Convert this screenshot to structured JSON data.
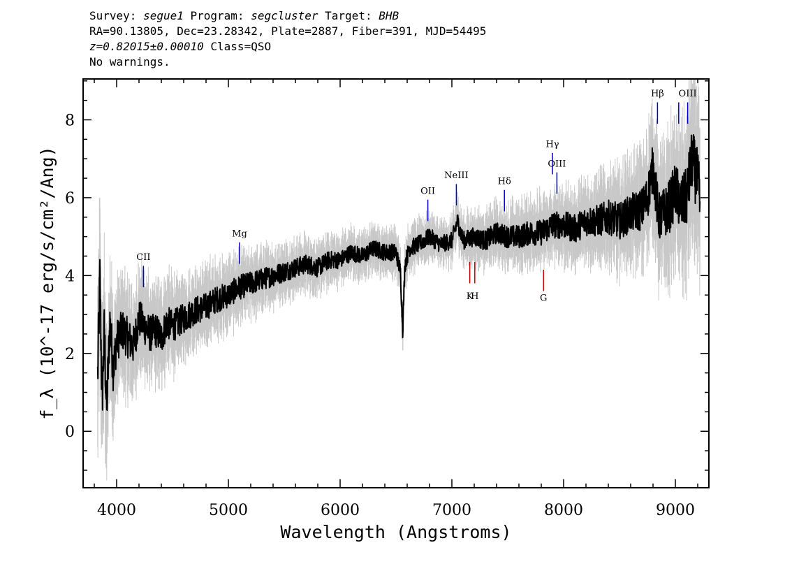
{
  "header": {
    "survey_key": "Survey: ",
    "survey": "segue1",
    "program_key": " Program: ",
    "program": "segcluster",
    "target_key": " Target: ",
    "target": "BHB",
    "line2": "RA=90.13805, Dec=23.28342, Plate=2887, Fiber=391, MJD=54495",
    "redshift": "z=0.82015±0.00010",
    "class_text": " Class=QSO",
    "warnings": "No warnings."
  },
  "chart_data": {
    "type": "line",
    "xlabel": "Wavelength (Angstroms)",
    "ylabel": "f_λ (10^-17 erg/s/cm²/Ang)",
    "xlim": [
      3700,
      9300
    ],
    "ylim": [
      -1.45,
      9.05
    ],
    "x_ticks": [
      4000,
      5000,
      6000,
      7000,
      8000,
      9000
    ],
    "x_tick_labels": [
      "4000",
      "5000",
      "6000",
      "7000",
      "8000",
      "9000"
    ],
    "y_ticks": [
      0,
      2,
      4,
      6,
      8
    ],
    "y_tick_labels": [
      "0",
      "2",
      "4",
      "6",
      "8"
    ],
    "series": [
      {
        "role": "flux",
        "color": "#000000",
        "x": [
          3830,
          3850,
          3870,
          3890,
          3910,
          3940,
          3970,
          4000,
          4050,
          4100,
          4150,
          4200,
          4250,
          4300,
          4350,
          4400,
          4450,
          4500,
          4600,
          4700,
          4800,
          4900,
          5000,
          5100,
          5200,
          5300,
          5400,
          5500,
          5600,
          5700,
          5800,
          5900,
          6000,
          6100,
          6200,
          6300,
          6400,
          6500,
          6540,
          6560,
          6580,
          6620,
          6700,
          6800,
          6900,
          7000,
          7050,
          7100,
          7200,
          7300,
          7400,
          7500,
          7600,
          7700,
          7800,
          7900,
          8000,
          8100,
          8200,
          8300,
          8400,
          8500,
          8600,
          8700,
          8750,
          8800,
          8850,
          8900,
          8950,
          9000,
          9050,
          9100,
          9150,
          9200,
          9220
        ],
        "y": [
          1.4,
          3.9,
          0.8,
          2.6,
          0.5,
          2.8,
          1.6,
          2.3,
          2.6,
          2.4,
          2.2,
          2.9,
          2.7,
          2.5,
          2.6,
          2.4,
          2.8,
          2.7,
          2.9,
          3.1,
          3.2,
          3.4,
          3.5,
          3.7,
          3.8,
          3.9,
          4.0,
          4.1,
          4.2,
          4.3,
          4.2,
          4.4,
          4.4,
          4.6,
          4.5,
          4.7,
          4.6,
          4.6,
          4.1,
          2.6,
          4.3,
          4.7,
          4.8,
          5.0,
          4.8,
          4.9,
          5.4,
          4.9,
          5.0,
          4.9,
          5.1,
          5.0,
          5.0,
          5.1,
          5.1,
          5.3,
          5.3,
          5.2,
          5.4,
          5.4,
          5.5,
          5.4,
          5.6,
          5.7,
          6.0,
          6.8,
          5.5,
          5.6,
          5.8,
          6.2,
          5.8,
          6.0,
          7.0,
          6.4,
          5.9
        ]
      },
      {
        "role": "error",
        "color": "#c8c8c8",
        "x": [
          3830,
          3900,
          4000,
          4200,
          4400,
          4600,
          4800,
          5000,
          5200,
          5400,
          5600,
          5800,
          6000,
          6200,
          6400,
          6600,
          6800,
          7000,
          7200,
          7400,
          7600,
          7800,
          8000,
          8200,
          8400,
          8600,
          8800,
          9000,
          9200
        ],
        "y": [
          1.5,
          1.4,
          1.0,
          0.9,
          0.8,
          0.7,
          0.65,
          0.6,
          0.55,
          0.5,
          0.45,
          0.45,
          0.4,
          0.4,
          0.4,
          0.4,
          0.4,
          0.4,
          0.45,
          0.5,
          0.55,
          0.6,
          0.65,
          0.7,
          0.8,
          0.9,
          1.1,
          1.3,
          1.5
        ]
      }
    ],
    "emission_lines": [
      {
        "label": "CII",
        "x": 4240,
        "y0": 3.7,
        "y1": 4.25,
        "label_y": 4.4,
        "color": "#0000cc"
      },
      {
        "label": "Mg",
        "x": 5100,
        "y0": 4.3,
        "y1": 4.85,
        "label_y": 5.0,
        "color": "#0000cc"
      },
      {
        "label": "OII",
        "x": 6785,
        "y0": 5.4,
        "y1": 5.95,
        "label_y": 6.1,
        "color": "#0000cc"
      },
      {
        "label": "NeIII",
        "x": 7040,
        "y0": 5.8,
        "y1": 6.35,
        "label_y": 6.5,
        "color": "#0000cc"
      },
      {
        "label": "Hδ",
        "x": 7470,
        "y0": 5.65,
        "y1": 6.2,
        "label_y": 6.35,
        "color": "#0000cc"
      },
      {
        "label": "Hγ",
        "x": 7900,
        "y0": 6.6,
        "y1": 7.15,
        "label_y": 7.3,
        "color": "#0000cc"
      },
      {
        "label": "OIII",
        "x": 7940,
        "y0": 6.1,
        "y1": 6.65,
        "label_y": 6.8,
        "color": "#0000cc"
      },
      {
        "label": "Hβ",
        "x": 8840,
        "y0": 7.9,
        "y1": 8.45,
        "label_y": 8.6,
        "color": "#0000cc"
      },
      {
        "label": "",
        "x": 9030,
        "y0": 7.9,
        "y1": 8.45,
        "label_y": 8.6,
        "color": "#0000cc"
      },
      {
        "label": "OIII",
        "x": 9110,
        "y0": 7.9,
        "y1": 8.45,
        "label_y": 8.6,
        "color": "#0000cc"
      }
    ],
    "absorption_lines": [
      {
        "label": "K",
        "x": 7160,
        "y0": 3.8,
        "y1": 4.35,
        "label_y": 3.4,
        "color": "#cc0000"
      },
      {
        "label": "H",
        "x": 7205,
        "y0": 3.8,
        "y1": 4.35,
        "label_y": 3.4,
        "color": "#cc0000"
      },
      {
        "label": "G",
        "x": 7820,
        "y0": 3.6,
        "y1": 4.15,
        "label_y": 3.35,
        "color": "#cc0000"
      }
    ]
  }
}
